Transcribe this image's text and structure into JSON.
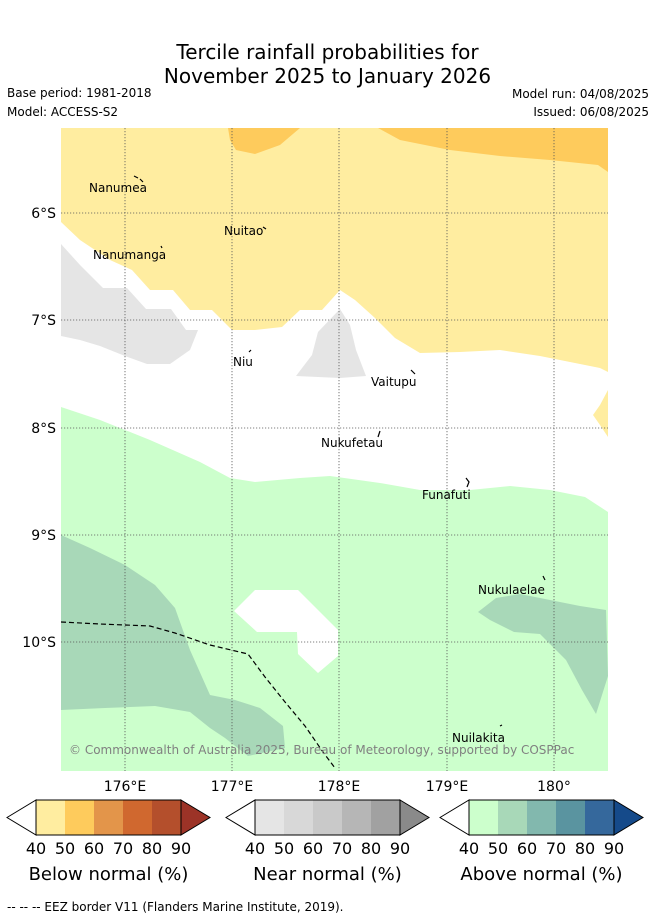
{
  "title": {
    "line1": "Tercile rainfall probabilities for",
    "line2": "November 2025 to January 2026"
  },
  "meta": {
    "base_period": "Base period: 1981-2018",
    "model": "Model: ACCESS-S2",
    "model_run": "Model run: 04/08/2025",
    "issued": "Issued: 06/08/2025"
  },
  "islands": [
    "Nanumea",
    "Nuitao",
    "Nanumanga",
    "Niu",
    "Vaitupu",
    "Nukufetau",
    "Funafuti",
    "Nukulaelae",
    "Nuilakita"
  ],
  "axes": {
    "y_ticks": [
      "6°S",
      "7°S",
      "8°S",
      "9°S",
      "10°S"
    ],
    "x_ticks": [
      "176°E",
      "177°E",
      "178°E",
      "179°E",
      "180°"
    ]
  },
  "copyright": "© Commonwealth of Australia 2025, Bureau of Meteorology, supported by COSPPac",
  "legends": [
    {
      "title": "Below normal (%)",
      "values": [
        "40",
        "50",
        "60",
        "70",
        "80",
        "90"
      ],
      "colors": [
        "#ffeda0",
        "#fecb5c",
        "#e3954a",
        "#d0682f",
        "#b44f2c",
        "#9c3327"
      ]
    },
    {
      "title": "Near normal (%)",
      "values": [
        "40",
        "50",
        "60",
        "70",
        "80",
        "90"
      ],
      "colors": [
        "#e5e5e5",
        "#d8d8d8",
        "#c9c9c9",
        "#b6b6b6",
        "#a1a1a1",
        "#8a8a8a"
      ]
    },
    {
      "title": "Above normal (%)",
      "values": [
        "40",
        "50",
        "60",
        "70",
        "80",
        "90"
      ],
      "colors": [
        "#ccffcc",
        "#a8d8b8",
        "#82b8ae",
        "#5a94a0",
        "#35689c",
        "#154a8a"
      ]
    }
  ],
  "footer": "-- -- -- EEZ border V11 (Flanders Marine Institute, 2019)."
}
